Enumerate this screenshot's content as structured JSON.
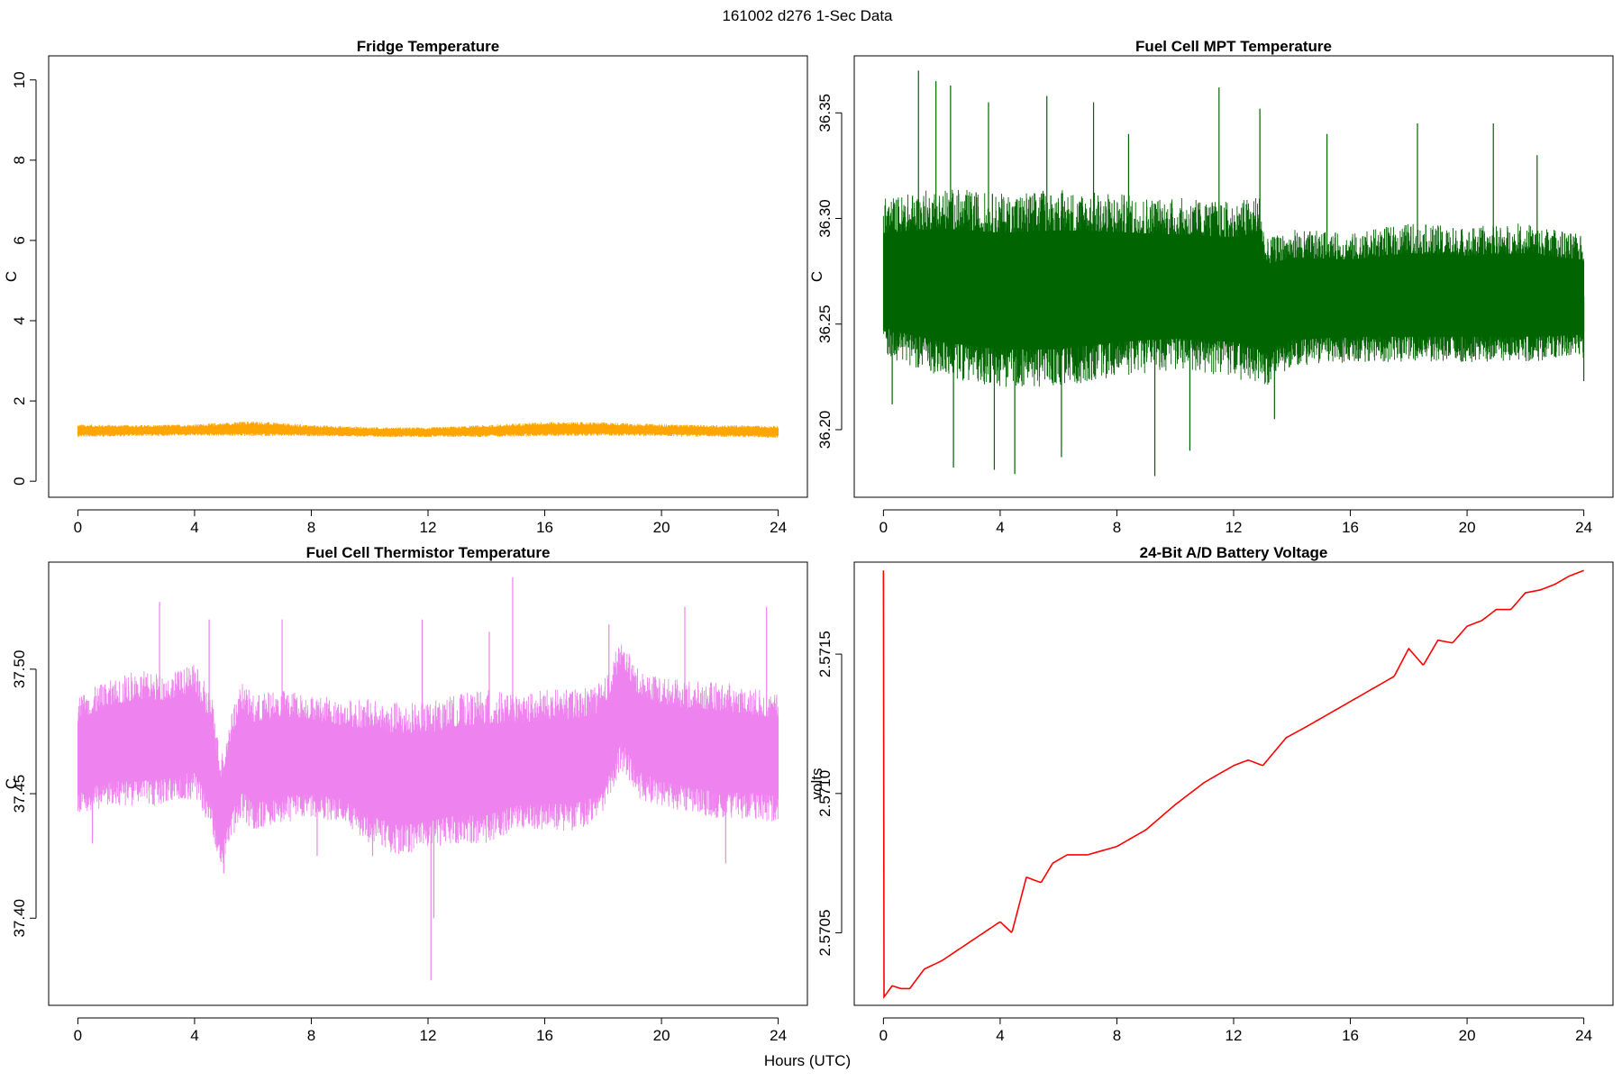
{
  "figure": {
    "suptitle": "161002   d276   1-Sec Data",
    "xlabel": "Hours (UTC)"
  },
  "chart_data": [
    {
      "type": "line",
      "title": "Fridge Temperature",
      "ylabel": "C",
      "xlim": [
        -1,
        25
      ],
      "ylim": [
        -0.4,
        10.6
      ],
      "xticks": [
        0,
        4,
        8,
        12,
        16,
        20,
        24
      ],
      "xtick_labels": [
        "0",
        "4",
        "8",
        "12",
        "16",
        "20",
        "24"
      ],
      "yticks": [
        0,
        2,
        4,
        6,
        8,
        10
      ],
      "ytick_labels": [
        "0",
        "2",
        "4",
        "6",
        "8",
        "10"
      ],
      "color": "#FFA500",
      "style": "band",
      "x": [
        0,
        2,
        4,
        6,
        8,
        10,
        12,
        14,
        16,
        18,
        20,
        22,
        24
      ],
      "center": [
        1.25,
        1.26,
        1.27,
        1.3,
        1.26,
        1.22,
        1.22,
        1.25,
        1.3,
        1.3,
        1.27,
        1.25,
        1.23
      ],
      "upper": [
        1.42,
        1.4,
        1.42,
        1.5,
        1.4,
        1.35,
        1.34,
        1.4,
        1.48,
        1.47,
        1.42,
        1.4,
        1.38
      ],
      "lower": [
        1.1,
        1.12,
        1.13,
        1.12,
        1.12,
        1.1,
        1.1,
        1.1,
        1.12,
        1.13,
        1.12,
        1.1,
        1.08
      ],
      "spikes": []
    },
    {
      "type": "line",
      "title": "Fuel Cell MPT Temperature",
      "ylabel": "C",
      "xlim": [
        -1,
        25
      ],
      "ylim": [
        36.168,
        36.377
      ],
      "xticks": [
        0,
        4,
        8,
        12,
        16,
        20,
        24
      ],
      "xtick_labels": [
        "0",
        "4",
        "8",
        "12",
        "16",
        "20",
        "24"
      ],
      "yticks": [
        36.2,
        36.25,
        36.3,
        36.35
      ],
      "ytick_labels": [
        "36.20",
        "36.25",
        "36.30",
        "36.35"
      ],
      "color": "#006400",
      "style": "band",
      "x": [
        0,
        2,
        4,
        6,
        8,
        10,
        12,
        12.9,
        13.1,
        14,
        16,
        18,
        20,
        22,
        24
      ],
      "center": [
        36.268,
        36.266,
        36.265,
        36.265,
        36.266,
        36.266,
        36.266,
        36.266,
        36.261,
        36.261,
        36.262,
        36.262,
        36.262,
        36.262,
        36.263
      ],
      "upper": [
        36.31,
        36.315,
        36.312,
        36.314,
        36.312,
        36.31,
        36.308,
        36.312,
        36.29,
        36.295,
        36.293,
        36.298,
        36.296,
        36.298,
        36.292
      ],
      "lower": [
        36.235,
        36.225,
        36.22,
        36.22,
        36.225,
        36.228,
        36.225,
        36.22,
        36.22,
        36.23,
        36.232,
        36.232,
        36.232,
        36.232,
        36.233
      ],
      "spikes": [
        [
          1.2,
          36.37
        ],
        [
          2.3,
          36.363
        ],
        [
          4.5,
          36.179
        ],
        [
          9.3,
          36.178
        ],
        [
          11.5,
          36.362
        ],
        [
          12.9,
          36.352
        ],
        [
          3.6,
          36.355
        ],
        [
          7.2,
          36.355
        ],
        [
          5.6,
          36.358
        ],
        [
          18.3,
          36.345
        ],
        [
          13.4,
          36.205
        ],
        [
          2.4,
          36.182
        ],
        [
          3.8,
          36.181
        ],
        [
          1.8,
          36.365
        ],
        [
          6.1,
          36.187
        ],
        [
          10.5,
          36.19
        ],
        [
          8.4,
          36.34
        ],
        [
          15.2,
          36.34
        ],
        [
          20.9,
          36.345
        ],
        [
          22.4,
          36.33
        ],
        [
          0.3,
          36.212
        ],
        [
          24,
          36.223
        ]
      ]
    },
    {
      "type": "line",
      "title": "Fuel Cell Thermistor Temperature",
      "ylabel": "C",
      "xlim": [
        -1,
        25
      ],
      "ylim": [
        37.365,
        37.543
      ],
      "xticks": [
        0,
        4,
        8,
        12,
        16,
        20,
        24
      ],
      "xtick_labels": [
        "0",
        "4",
        "8",
        "12",
        "16",
        "20",
        "24"
      ],
      "yticks": [
        37.4,
        37.45,
        37.5
      ],
      "ytick_labels": [
        "37.40",
        "37.45",
        "37.50"
      ],
      "color": "#EE82EE",
      "style": "band",
      "x": [
        0,
        1,
        2,
        3,
        4,
        4.6,
        4.9,
        5.2,
        5.6,
        6,
        7,
        8,
        9,
        10,
        11,
        12,
        13,
        14,
        15,
        16,
        17,
        18,
        18.6,
        19.2,
        20,
        21,
        22,
        23,
        24
      ],
      "center": [
        37.465,
        37.47,
        37.47,
        37.472,
        37.475,
        37.46,
        37.44,
        37.455,
        37.47,
        37.462,
        37.465,
        37.465,
        37.462,
        37.458,
        37.455,
        37.455,
        37.458,
        37.458,
        37.46,
        37.462,
        37.462,
        37.465,
        37.488,
        37.475,
        37.47,
        37.468,
        37.466,
        37.466,
        37.465
      ],
      "upper": [
        37.49,
        37.495,
        37.5,
        37.498,
        37.502,
        37.49,
        37.465,
        37.48,
        37.495,
        37.49,
        37.492,
        37.49,
        37.488,
        37.488,
        37.487,
        37.487,
        37.49,
        37.492,
        37.49,
        37.492,
        37.492,
        37.495,
        37.512,
        37.5,
        37.497,
        37.495,
        37.495,
        37.493,
        37.49
      ],
      "lower": [
        37.44,
        37.445,
        37.445,
        37.445,
        37.448,
        37.435,
        37.418,
        37.428,
        37.44,
        37.435,
        37.438,
        37.44,
        37.438,
        37.43,
        37.425,
        37.428,
        37.43,
        37.43,
        37.435,
        37.435,
        37.435,
        37.44,
        37.46,
        37.448,
        37.445,
        37.442,
        37.44,
        37.44,
        37.438
      ],
      "spikes": [
        [
          2.8,
          37.527
        ],
        [
          12.1,
          37.375
        ],
        [
          12.2,
          37.4
        ],
        [
          14.9,
          37.537
        ],
        [
          11.8,
          37.52
        ],
        [
          20.8,
          37.525
        ],
        [
          23.6,
          37.525
        ],
        [
          7,
          37.52
        ],
        [
          4.5,
          37.52
        ],
        [
          18.2,
          37.518
        ],
        [
          8.2,
          37.425
        ],
        [
          10.1,
          37.425
        ],
        [
          5,
          37.418
        ],
        [
          22.2,
          37.422
        ],
        [
          0.5,
          37.43
        ],
        [
          14.1,
          37.515
        ]
      ]
    },
    {
      "type": "line",
      "title": "24-Bit A/D Battery Voltage",
      "ylabel": "volts",
      "xlim": [
        -1,
        25
      ],
      "ylim": [
        2.57024,
        2.57183
      ],
      "xticks": [
        0,
        4,
        8,
        12,
        16,
        20,
        24
      ],
      "xtick_labels": [
        "0",
        "4",
        "8",
        "12",
        "16",
        "20",
        "24"
      ],
      "yticks": [
        2.5705,
        2.571,
        2.5715
      ],
      "ytick_labels": [
        "2.5705",
        "2.5710",
        "2.5715"
      ],
      "color": "#FF0000",
      "style": "line",
      "x": [
        0,
        0.02,
        0.3,
        0.6,
        0.9,
        1.4,
        2,
        3,
        4,
        4.4,
        4.9,
        5.4,
        5.8,
        6.3,
        7,
        8,
        9,
        10,
        11,
        12,
        12.5,
        13,
        13.8,
        14.5,
        15.5,
        16.5,
        17.5,
        18,
        18.5,
        19,
        19.5,
        20,
        20.5,
        21,
        21.5,
        22,
        22.5,
        23,
        23.5,
        24
      ],
      "y": [
        2.5718,
        2.57027,
        2.57031,
        2.5703,
        2.5703,
        2.57037,
        2.5704,
        2.57047,
        2.57054,
        2.5705,
        2.5707,
        2.57068,
        2.57075,
        2.57078,
        2.57078,
        2.57081,
        2.57087,
        2.57096,
        2.57104,
        2.5711,
        2.57112,
        2.5711,
        2.5712,
        2.57124,
        2.5713,
        2.57136,
        2.57142,
        2.57152,
        2.57146,
        2.57155,
        2.57154,
        2.5716,
        2.57162,
        2.57166,
        2.57166,
        2.57172,
        2.57173,
        2.57175,
        2.57178,
        2.5718
      ]
    }
  ]
}
